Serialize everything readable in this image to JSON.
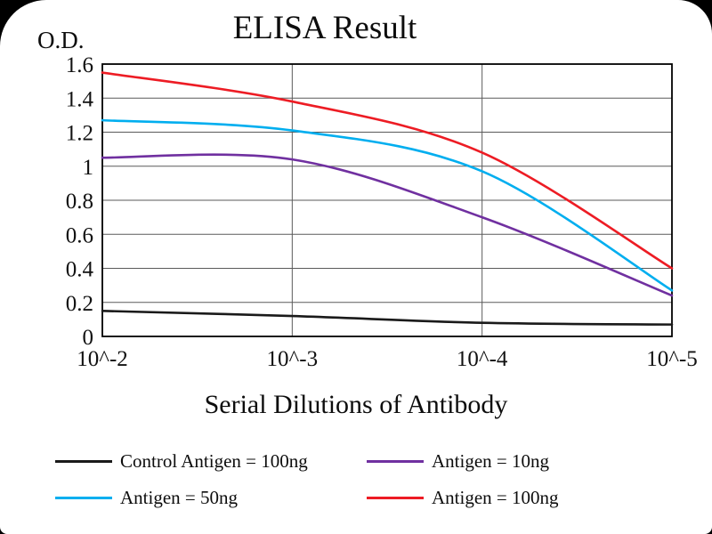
{
  "chart_data": {
    "type": "line",
    "title": "ELISA Result",
    "ylabel": "O.D.",
    "xlabel": "Serial Dilutions of Antibody",
    "categories": [
      "10^-2",
      "10^-3",
      "10^-4",
      "10^-5"
    ],
    "ylim": [
      0,
      1.6
    ],
    "ytick_step": 0.2,
    "ytick_labels": [
      "0",
      "0.2",
      "0.4",
      "0.6",
      "0.8",
      "1",
      "1.2",
      "1.4",
      "1.6"
    ],
    "grid": true,
    "legend_position": "bottom",
    "series": [
      {
        "name": "Control Antigen = 100ng",
        "color": "#1a1a1a",
        "values": [
          0.15,
          0.12,
          0.08,
          0.07
        ]
      },
      {
        "name": "Antigen = 10ng",
        "color": "#7030a0",
        "values": [
          1.05,
          1.04,
          0.7,
          0.24
        ]
      },
      {
        "name": "Antigen = 50ng",
        "color": "#00aeef",
        "values": [
          1.27,
          1.21,
          0.97,
          0.27
        ]
      },
      {
        "name": "Antigen = 100ng",
        "color": "#ed1c24",
        "values": [
          1.55,
          1.38,
          1.08,
          0.4
        ]
      }
    ]
  },
  "colors": {
    "grid": "#5a5a5a",
    "axis": "#000000",
    "background": "#ffffff",
    "text": "#111111"
  }
}
